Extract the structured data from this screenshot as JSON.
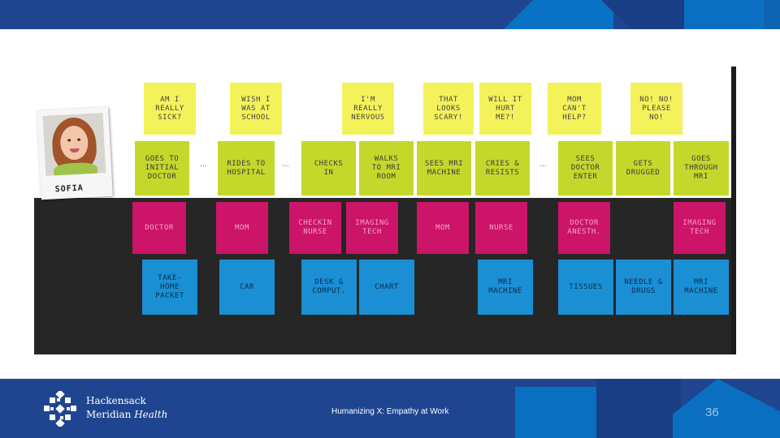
{
  "board": {
    "persona_name": "SOFIA",
    "ellipses": [
      "...",
      "...",
      "..."
    ],
    "thoughts": [
      "AM I\nREALLY\nSICK?",
      "WISH I\nWAS AT\nSCHOOL",
      "I'M\nREALLY\nNERVOUS",
      "THAT\nLOOKS\nSCARY!",
      "WILL IT\nHURT\nME?!",
      "MOM\nCAN'T\nHELP?",
      "NO! NO!\nPLEASE\nNO!"
    ],
    "actions": [
      "GOES TO\nINITIAL\nDOCTOR",
      "RIDES TO\nHOSPITAL",
      "CHECKS\nIN",
      "WALKS\nTO MRI\nROOM",
      "SEES MRI\nMACHINE",
      "CRIES &\nRESISTS",
      "SEES\nDOCTOR\nENTER",
      "GETS\nDRUGGED",
      "GOES\nTHROUGH\nMRI"
    ],
    "people": [
      "DOCTOR",
      "MOM",
      "CHECKIN\nNURSE",
      "IMAGING\nTECH",
      "MOM",
      "NURSE",
      "DOCTOR\nANESTH.",
      "IMAGING\nTECH"
    ],
    "objects": [
      "TAKE-\nHOME\nPACKET",
      "CAR",
      "DESK &\nCOMPUT.",
      "CHART",
      "MRI\nMACHINE",
      "TISSUES",
      "NEEDLE &\nDRUGS",
      "MRI\nMACHINE"
    ]
  },
  "footer": {
    "logo_line1": "Hackensack",
    "logo_line2_a": "Meridian",
    "logo_line2_b": "Health",
    "caption": "Humanizing X: Empathy at Work",
    "page_number": "36"
  },
  "colors": {
    "banner_blue": "#1f4590",
    "accent_blue": "#0a6fc0",
    "yellow_note": "#f4f25a",
    "green_note": "#c4d82c",
    "pink_note": "#cc1468",
    "blue_note": "#1b8fd4"
  }
}
